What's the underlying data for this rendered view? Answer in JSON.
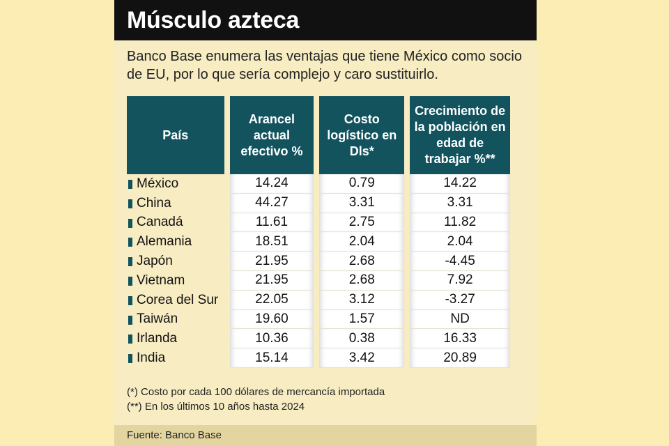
{
  "title": "Músculo azteca",
  "subtitle": "Banco Base enumera las ventajas que tiene México como socio de EU, por lo que sería complejo y caro sustituirlo.",
  "chart_data": {
    "type": "table",
    "columns": [
      "País",
      "Arancel actual efectivo %",
      "Costo logístico en Dls*",
      "Crecimiento de la población en edad de trabajar %**"
    ],
    "rows": [
      [
        "México",
        "14.24",
        "0.79",
        "14.22"
      ],
      [
        "China",
        "44.27",
        "3.31",
        "3.31"
      ],
      [
        "Canadá",
        "11.61",
        "2.75",
        "11.82"
      ],
      [
        "Alemania",
        "18.51",
        "2.04",
        "2.04"
      ],
      [
        "Japón",
        "21.95",
        "2.68",
        "-4.45"
      ],
      [
        "Vietnam",
        "21.95",
        "2.68",
        "7.92"
      ],
      [
        "Corea del Sur",
        "22.05",
        "3.12",
        "-3.27"
      ],
      [
        "Taiwán",
        "19.60",
        "1.57",
        "ND"
      ],
      [
        "Irlanda",
        "10.36",
        "0.38",
        "16.33"
      ],
      [
        "India",
        "15.14",
        "3.42",
        "20.89"
      ]
    ]
  },
  "notes": [
    "(*) Costo por cada 100 dólares de mercancía importada",
    "(**) En los últimos 10 años hasta 2024"
  ],
  "source": "Fuente: Banco Base",
  "colors": {
    "header": "#12535e",
    "title_bar": "#111111",
    "background": "#f7ecc2",
    "source_bar": "#e3d5a0"
  }
}
